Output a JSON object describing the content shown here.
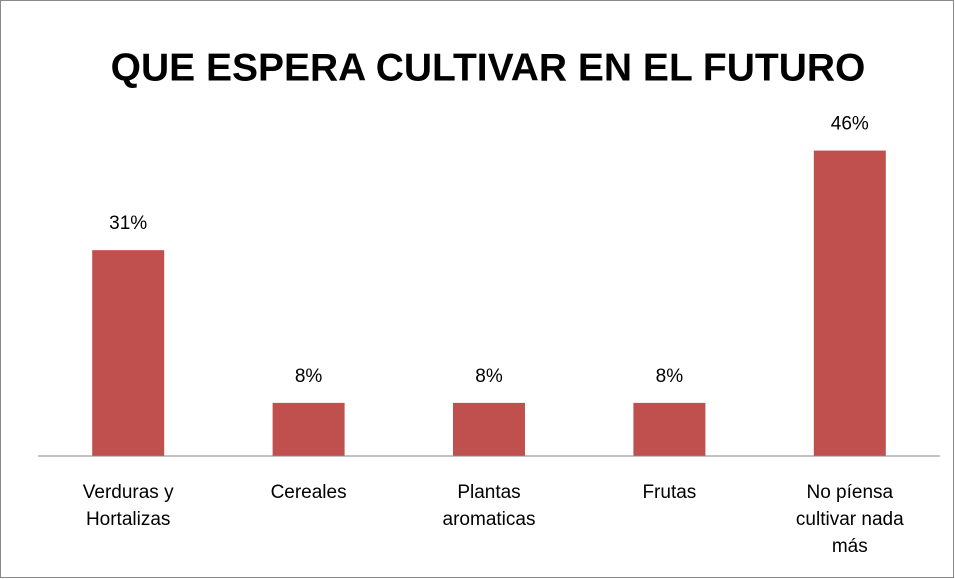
{
  "chart_data": {
    "type": "bar",
    "title": "QUE ESPERA CULTIVAR EN EL FUTURO",
    "categories": [
      "Verduras y Hortalizas",
      "Cereales",
      "Plantas aromaticas",
      "Frutas",
      "No píensa cultivar nada más"
    ],
    "values": [
      31,
      8,
      8,
      8,
      46
    ],
    "value_labels": [
      "31%",
      "8%",
      "8%",
      "8%",
      "46%"
    ],
    "color": "#c0504d",
    "ylim": [
      0,
      50
    ]
  }
}
